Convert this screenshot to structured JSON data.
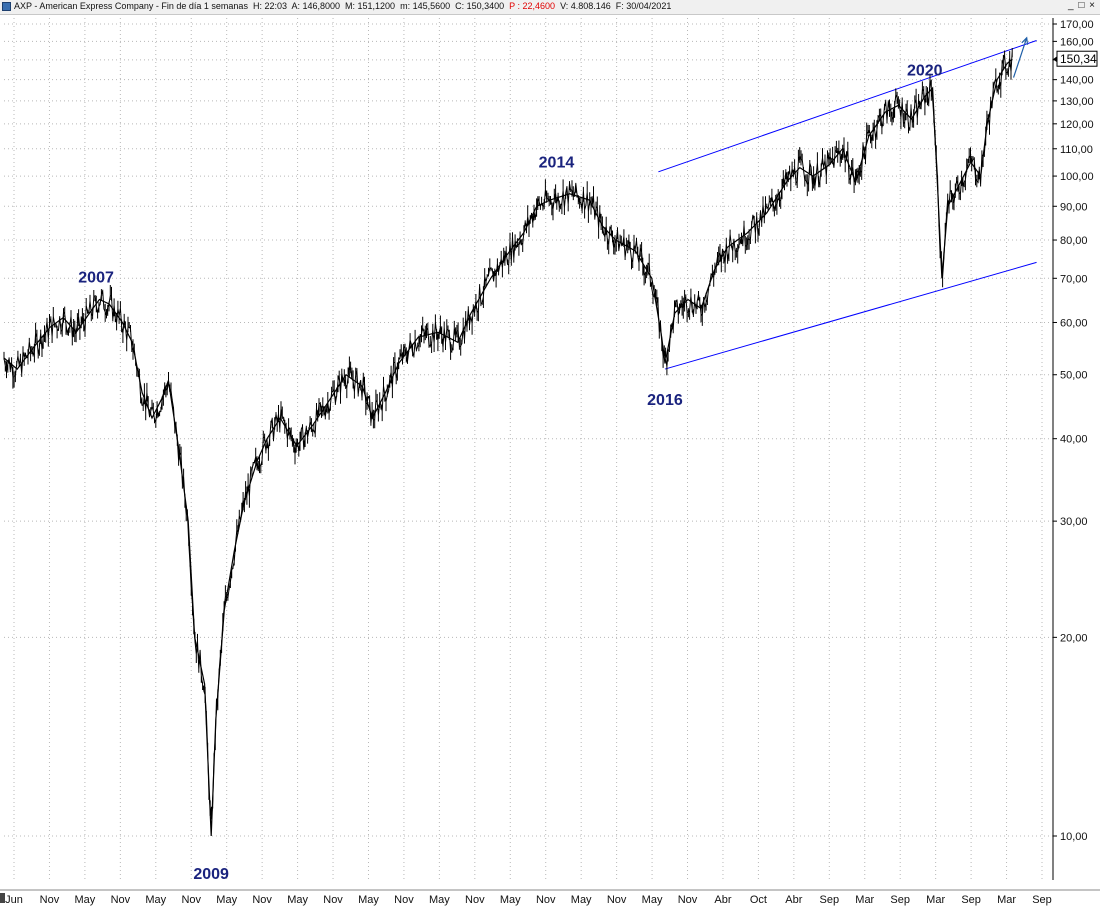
{
  "window": {
    "title_parts": [
      {
        "text": "AXP - American Express Company - Fin de día 1 semanas  "
      },
      {
        "text": "H: 22:03  "
      },
      {
        "text": "A: 146,8000  "
      },
      {
        "text": "M: 151,1200  "
      },
      {
        "text": "m: 145,5600  "
      },
      {
        "text": "C: 150,3400  "
      },
      {
        "text": "P : 22,4600  ",
        "color": "red"
      },
      {
        "text": "V: 4.808.146  "
      },
      {
        "text": "F: 30/04/2021"
      }
    ],
    "controls": {
      "minimize": "_",
      "maximize": "□",
      "close": "×"
    }
  },
  "chart_data": {
    "type": "line",
    "scale": "log",
    "grid": true,
    "line_color": "#000000",
    "channel_color": "#0000ff",
    "arrow_color": "#1f5fa8",
    "annotation_color": "#1a237e",
    "ylim": [
      9.3,
      172
    ],
    "y_ticks": [
      "170,00",
      "160,00",
      "150,00",
      "140,00",
      "130,00",
      "120,00",
      "110,00",
      "100,00",
      "90,00",
      "80,00",
      "70,00",
      "60,00",
      "50,00",
      "40,00",
      "30,00",
      "20,00",
      "10,00"
    ],
    "y_tick_values": [
      170,
      160,
      150,
      140,
      130,
      120,
      110,
      100,
      90,
      80,
      70,
      60,
      50,
      40,
      30,
      20,
      10
    ],
    "last_price_label": "150,34",
    "last_price": 150.34,
    "x_ticks": [
      "Jun",
      "Nov",
      "May",
      "Nov",
      "May",
      "Nov",
      "May",
      "Nov",
      "May",
      "Nov",
      "May",
      "Nov",
      "May",
      "Nov",
      "May",
      "Nov",
      "May",
      "Nov",
      "May",
      "Nov",
      "Abr",
      "Oct",
      "Abr",
      "Sep",
      "Mar",
      "Sep",
      "Mar",
      "Sep",
      "Mar",
      "Sep"
    ],
    "annotations": [
      {
        "label": "2007",
        "x": 2007.4,
        "y": 69
      },
      {
        "label": "2009",
        "x": 2009.15,
        "y": 8.6
      },
      {
        "label": "2014",
        "x": 2014.4,
        "y": 103
      },
      {
        "label": "2016",
        "x": 2016.05,
        "y": 45
      },
      {
        "label": "2020",
        "x": 2020.0,
        "y": 142
      }
    ],
    "series": [
      {
        "points": [
          [
            2006.0,
            53
          ],
          [
            2006.2,
            51
          ],
          [
            2006.45,
            55
          ],
          [
            2006.7,
            59
          ],
          [
            2006.9,
            61
          ],
          [
            2007.1,
            58
          ],
          [
            2007.3,
            62
          ],
          [
            2007.45,
            65
          ],
          [
            2007.6,
            64
          ],
          [
            2007.8,
            60
          ],
          [
            2007.95,
            56
          ],
          [
            2008.1,
            47
          ],
          [
            2008.25,
            43
          ],
          [
            2008.4,
            46
          ],
          [
            2008.5,
            49
          ],
          [
            2008.65,
            39
          ],
          [
            2008.8,
            30
          ],
          [
            2008.9,
            20
          ],
          [
            2009.05,
            17
          ],
          [
            2009.15,
            10
          ],
          [
            2009.22,
            15
          ],
          [
            2009.35,
            22
          ],
          [
            2009.5,
            27
          ],
          [
            2009.65,
            32
          ],
          [
            2009.85,
            37
          ],
          [
            2010.0,
            40
          ],
          [
            2010.2,
            43
          ],
          [
            2010.45,
            39
          ],
          [
            2010.7,
            42
          ],
          [
            2010.9,
            45
          ],
          [
            2011.2,
            50
          ],
          [
            2011.45,
            48
          ],
          [
            2011.6,
            43
          ],
          [
            2011.8,
            47
          ],
          [
            2012.0,
            52
          ],
          [
            2012.3,
            57
          ],
          [
            2012.6,
            58
          ],
          [
            2012.9,
            56
          ],
          [
            2013.1,
            62
          ],
          [
            2013.4,
            70
          ],
          [
            2013.65,
            76
          ],
          [
            2013.9,
            82
          ],
          [
            2014.1,
            90
          ],
          [
            2014.3,
            92
          ],
          [
            2014.6,
            94
          ],
          [
            2014.9,
            92
          ],
          [
            2015.1,
            84
          ],
          [
            2015.3,
            80
          ],
          [
            2015.6,
            77
          ],
          [
            2015.85,
            70
          ],
          [
            2016.0,
            57
          ],
          [
            2016.05,
            52
          ],
          [
            2016.2,
            62
          ],
          [
            2016.4,
            65
          ],
          [
            2016.6,
            63
          ],
          [
            2016.8,
            72
          ],
          [
            2017.0,
            78
          ],
          [
            2017.3,
            82
          ],
          [
            2017.6,
            88
          ],
          [
            2017.9,
            98
          ],
          [
            2018.1,
            103
          ],
          [
            2018.3,
            100
          ],
          [
            2018.55,
            104
          ],
          [
            2018.75,
            110
          ],
          [
            2018.95,
            98
          ],
          [
            2019.15,
            115
          ],
          [
            2019.4,
            125
          ],
          [
            2019.6,
            128
          ],
          [
            2019.8,
            122
          ],
          [
            2020.0,
            132
          ],
          [
            2020.12,
            136
          ],
          [
            2020.2,
            94
          ],
          [
            2020.26,
            70
          ],
          [
            2020.35,
            90
          ],
          [
            2020.5,
            96
          ],
          [
            2020.7,
            105
          ],
          [
            2020.85,
            100
          ],
          [
            2020.95,
            120
          ],
          [
            2021.1,
            140
          ],
          [
            2021.25,
            148
          ],
          [
            2021.33,
            150.34
          ]
        ]
      }
    ],
    "channel": {
      "upper": [
        [
          2015.95,
          101.5
        ],
        [
          2021.7,
          160.5
        ]
      ],
      "lower": [
        [
          2016.05,
          51.0
        ],
        [
          2021.7,
          74.0
        ]
      ]
    },
    "arrow": [
      [
        2021.35,
        141
      ],
      [
        2021.55,
        162
      ]
    ]
  }
}
